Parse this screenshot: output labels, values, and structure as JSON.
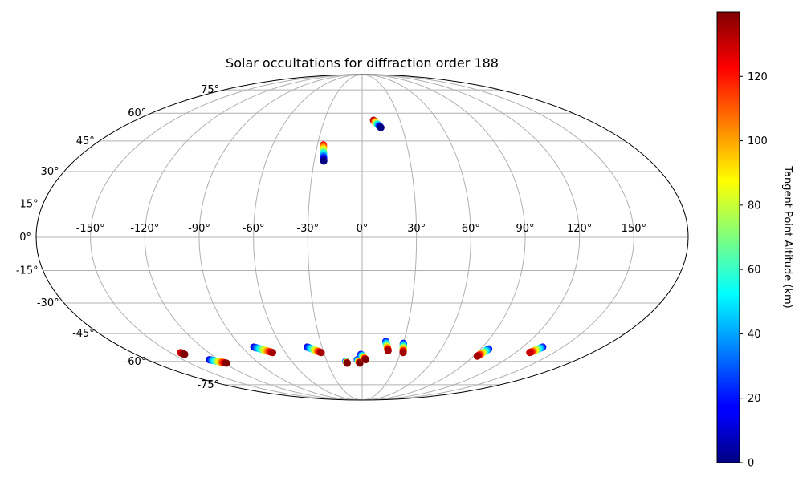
{
  "chart_data": {
    "type": "scatter",
    "projection": "mollweide",
    "title": "Solar occultations for diffraction order 188",
    "xlabel": "",
    "ylabel": "",
    "lon_ticks": [
      "-150°",
      "-120°",
      "-90°",
      "-60°",
      "-30°",
      "0°",
      "30°",
      "60°",
      "90°",
      "120°",
      "150°"
    ],
    "lon_tick_values": [
      -150,
      -120,
      -90,
      -60,
      -30,
      0,
      30,
      60,
      90,
      120,
      150
    ],
    "lat_ticks": [
      "75°",
      "60°",
      "45°",
      "30°",
      "15°",
      "0°",
      "-15°",
      "-30°",
      "-45°",
      "-60°",
      "-75°"
    ],
    "lat_tick_values": [
      75,
      60,
      45,
      30,
      15,
      0,
      -15,
      -30,
      -45,
      -60,
      -75
    ],
    "grid": true,
    "colorbar": {
      "label": "Tangent Point Altitude (km)",
      "min": 0,
      "max": 140,
      "ticks": [
        "0",
        "20",
        "40",
        "60",
        "80",
        "100",
        "120"
      ],
      "tick_values": [
        0,
        20,
        40,
        60,
        80,
        100,
        120
      ],
      "colormap": "jet",
      "placement": "right"
    },
    "tracks": [
      {
        "lon_top": 9,
        "lat_top": 56,
        "lon_bottom": 14,
        "lat_bottom": 52,
        "alt_top": 140,
        "alt_bottom": 0
      },
      {
        "lon_top": -26,
        "lat_top": 43,
        "lon_bottom": -24,
        "lat_bottom": 35,
        "alt_top": 125,
        "alt_bottom": 0
      },
      {
        "lon_top": -81,
        "lat_top": -52,
        "lon_bottom": -70,
        "lat_bottom": -55,
        "alt_top": 10,
        "alt_bottom": 135
      },
      {
        "lon_top": -41,
        "lat_top": -52,
        "lon_bottom": -32,
        "lat_bottom": -55,
        "alt_top": 10,
        "alt_bottom": 135
      },
      {
        "lon_top": 17,
        "lat_top": -49,
        "lon_bottom": 20,
        "lat_bottom": -54,
        "alt_top": 15,
        "alt_bottom": 135
      },
      {
        "lon_top": 30,
        "lat_top": -50,
        "lon_bottom": 32,
        "lat_bottom": -55,
        "alt_top": 15,
        "alt_bottom": 135
      },
      {
        "lon_top": 96,
        "lat_top": -53,
        "lon_bottom": 93,
        "lat_bottom": -57,
        "alt_top": 15,
        "alt_bottom": 135
      },
      {
        "lon_top": 135,
        "lat_top": -52,
        "lon_bottom": 131,
        "lat_bottom": -55,
        "alt_top": 15,
        "alt_bottom": 130
      },
      {
        "lon_top": -128,
        "lat_top": -59,
        "lon_bottom": -118,
        "lat_bottom": -61,
        "alt_top": 10,
        "alt_bottom": 140
      },
      {
        "lon_top": -142,
        "lat_top": -55,
        "lon_bottom": -141,
        "lat_bottom": -56,
        "alt_top": 125,
        "alt_bottom": 140
      },
      {
        "lon_top": -14,
        "lat_top": -60,
        "lon_bottom": -13,
        "lat_bottom": -61,
        "alt_top": 10,
        "alt_bottom": 140
      },
      {
        "lon_top": -4,
        "lat_top": -59,
        "lon_bottom": -2,
        "lat_bottom": -61,
        "alt_top": 10,
        "alt_bottom": 140
      },
      {
        "lon_top": -1,
        "lat_top": -56,
        "lon_bottom": 3,
        "lat_bottom": -59,
        "alt_top": 10,
        "alt_bottom": 140
      }
    ]
  }
}
